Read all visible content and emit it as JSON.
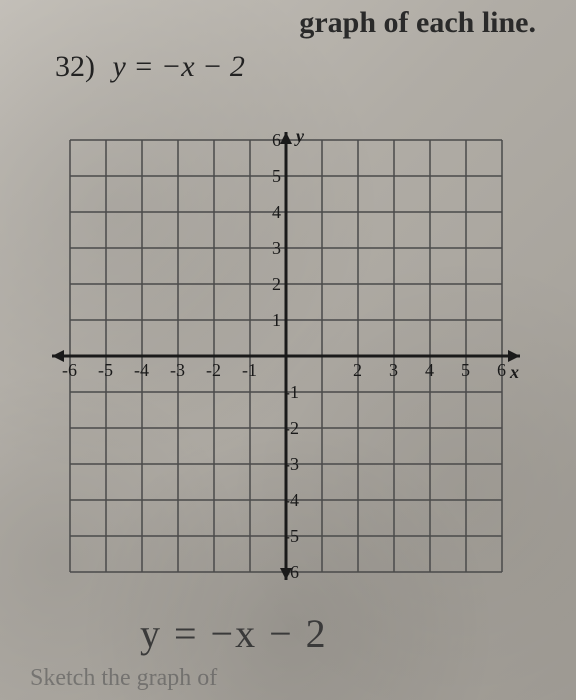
{
  "header": {
    "partial_text": "graph of each line."
  },
  "problem": {
    "number": "32)",
    "equation": "y = −x − 2"
  },
  "chart": {
    "type": "grid",
    "xlim": [
      -6,
      6
    ],
    "ylim": [
      -6,
      6
    ],
    "tick_step": 1,
    "x_labels_neg": [
      "-6",
      "-5",
      "-4",
      "-3",
      "-2",
      "-1"
    ],
    "x_labels_pos": [
      "2",
      "3",
      "4",
      "5",
      "6"
    ],
    "y_labels_pos": [
      "1",
      "2",
      "3",
      "4",
      "5",
      "6"
    ],
    "y_labels_neg": [
      "-1",
      "-2",
      "-3",
      "-4",
      "-5",
      "-6"
    ],
    "x_axis_label": "x",
    "y_axis_label": "y",
    "grid_color": "#4a4a4a",
    "axis_color": "#1a1a1a",
    "label_color": "#1a1a1a",
    "label_fontsize": 18,
    "cell_size": 36,
    "grid_stroke_width": 1.5,
    "axis_stroke_width": 3
  },
  "handwritten": {
    "text": "y = −x − 2"
  },
  "footer": {
    "partial_text": "Sketch the graph of"
  }
}
